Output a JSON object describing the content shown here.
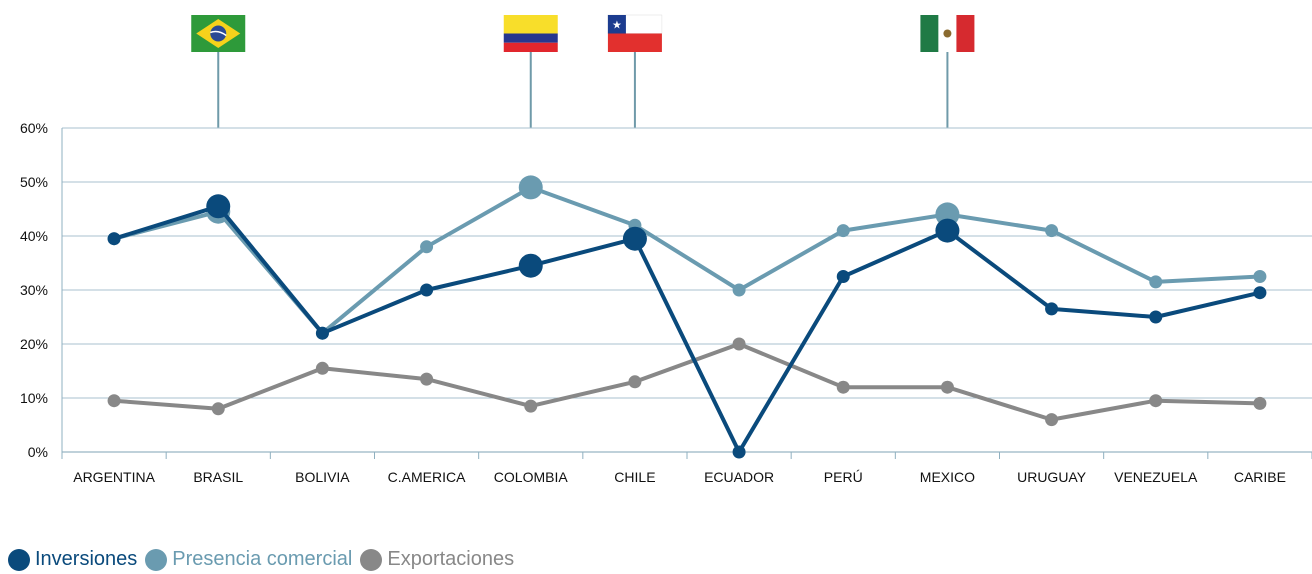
{
  "chart_data": {
    "type": "line",
    "categories": [
      "ARGENTINA",
      "BRASIL",
      "BOLIVIA",
      "C.AMERICA",
      "COLOMBIA",
      "CHILE",
      "ECUADOR",
      "PERÚ",
      "MEXICO",
      "URUGUAY",
      "VENEZUELA",
      "CARIBE"
    ],
    "ylim": [
      0,
      60
    ],
    "yticks": [
      "0%",
      "10%",
      "20%",
      "30%",
      "40%",
      "50%",
      "60%"
    ],
    "grid": true,
    "legend_position": "bottom-left",
    "series": [
      {
        "name": "Inversiones",
        "color": "#0a4a7c",
        "values": [
          39.5,
          45.5,
          22,
          30,
          34.5,
          39.5,
          0,
          32.5,
          41,
          26.5,
          25,
          29.5
        ],
        "highlight": [
          1,
          4,
          5,
          8
        ]
      },
      {
        "name": "Presencia comercial",
        "color": "#6a9bb0",
        "values": [
          39.5,
          44.5,
          22,
          38,
          49,
          42,
          30,
          41,
          44,
          41,
          31.5,
          32.5
        ],
        "highlight": [
          1,
          4,
          8
        ]
      },
      {
        "name": "Exportaciones",
        "color": "#888888",
        "values": [
          9.5,
          8,
          15.5,
          13.5,
          8.5,
          13,
          20,
          12,
          12,
          6,
          9.5,
          9
        ],
        "highlight": []
      }
    ],
    "flags": [
      {
        "category": "BRASIL",
        "icon": "brazil-flag"
      },
      {
        "category": "COLOMBIA",
        "icon": "colombia-flag"
      },
      {
        "category": "CHILE",
        "icon": "chile-flag"
      },
      {
        "category": "MEXICO",
        "icon": "mexico-flag"
      }
    ]
  }
}
